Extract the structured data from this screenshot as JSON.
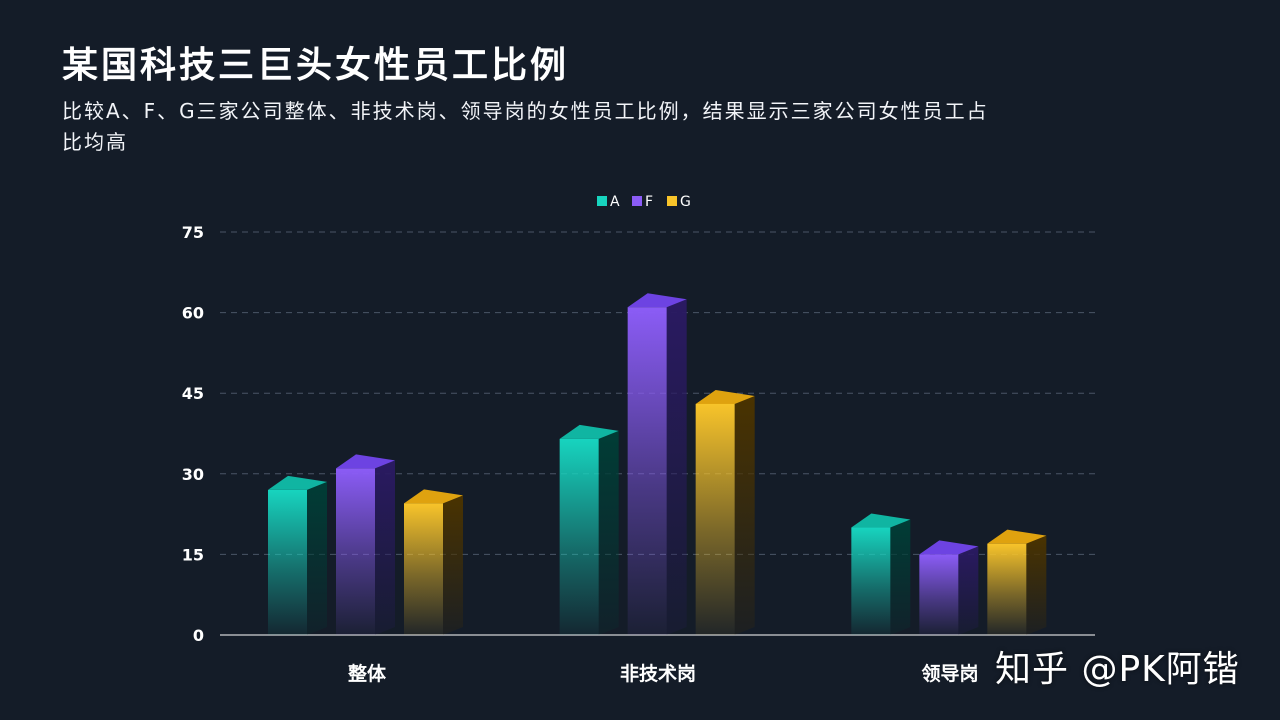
{
  "header": {
    "title": "某国科技三巨头女性员工比例",
    "subtitle": "比较A、F、G三家公司整体、非技术岗、领导岗的女性员工比例，结果显示三家公司女性员工占比均高"
  },
  "watermark": "知乎 @PK阿锴",
  "colors": {
    "A": {
      "front": "#17d4bf",
      "side": "#003d36",
      "top": "#10b5a2"
    },
    "F": {
      "front": "#8b5cf6",
      "side": "#2a1a62",
      "top": "#6d43e2"
    },
    "G": {
      "front": "#f8c42a",
      "side": "#4a3300",
      "top": "#dfa20f"
    }
  },
  "chart_data": {
    "type": "bar",
    "categories": [
      "整体",
      "非技术岗",
      "领导岗"
    ],
    "series": [
      {
        "name": "A",
        "values": [
          27,
          36.5,
          20
        ]
      },
      {
        "name": "F",
        "values": [
          31,
          61,
          15
        ]
      },
      {
        "name": "G",
        "values": [
          24.5,
          43,
          17
        ]
      }
    ],
    "yticks": [
      0,
      15,
      30,
      45,
      60,
      75
    ],
    "ylim": [
      0,
      75
    ],
    "grid": true,
    "legend": "top-center"
  }
}
